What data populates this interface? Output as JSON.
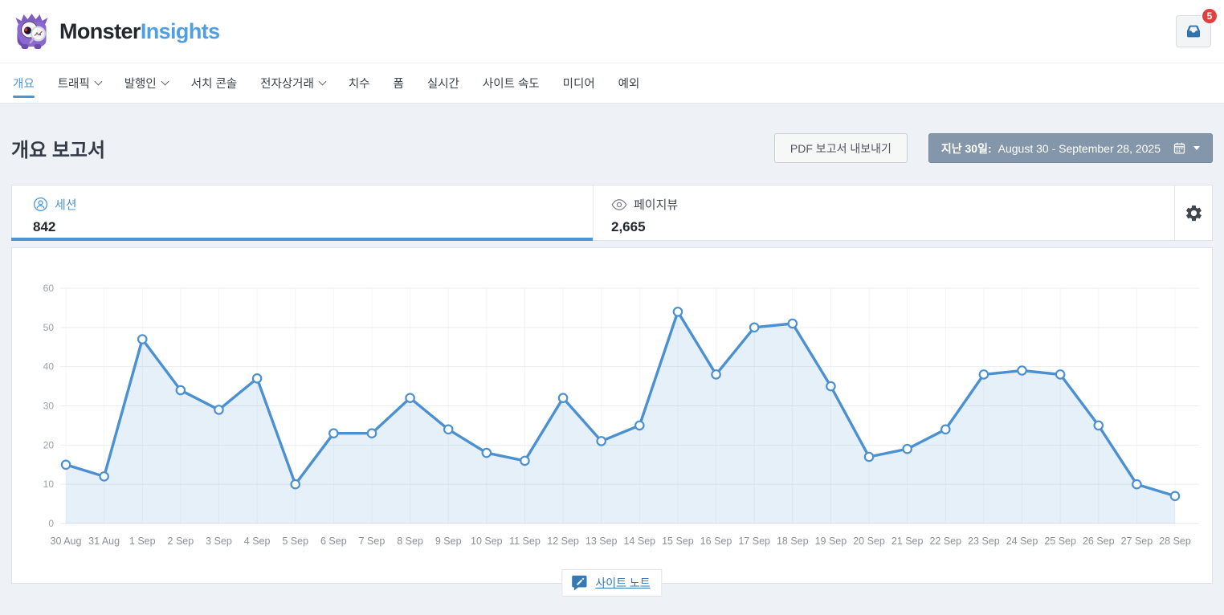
{
  "header": {
    "brand": {
      "part1": "Monster",
      "part2": "Insights"
    },
    "inbox_badge": "5"
  },
  "nav": {
    "items": [
      {
        "label": "개요",
        "slug": "overview",
        "dropdown": false,
        "active": true
      },
      {
        "label": "트래픽",
        "slug": "traffic",
        "dropdown": true,
        "active": false
      },
      {
        "label": "발행인",
        "slug": "publishers",
        "dropdown": true,
        "active": false
      },
      {
        "label": "서치 콘솔",
        "slug": "search-console",
        "dropdown": false,
        "active": false
      },
      {
        "label": "전자상거래",
        "slug": "ecommerce",
        "dropdown": true,
        "active": false
      },
      {
        "label": "치수",
        "slug": "dimensions",
        "dropdown": false,
        "active": false
      },
      {
        "label": "폼",
        "slug": "forms",
        "dropdown": false,
        "active": false
      },
      {
        "label": "실시간",
        "slug": "real-time",
        "dropdown": false,
        "active": false
      },
      {
        "label": "사이트 속도",
        "slug": "site-speed",
        "dropdown": false,
        "active": false
      },
      {
        "label": "미디어",
        "slug": "media",
        "dropdown": false,
        "active": false
      },
      {
        "label": "예외",
        "slug": "exceptions",
        "dropdown": false,
        "active": false
      }
    ]
  },
  "page": {
    "title": "개요 보고서",
    "pdf_export_label": "PDF 보고서 내보내기",
    "date_range": {
      "prefix": "지난 30일:",
      "range": "August 30 - September 28, 2025"
    }
  },
  "stats": {
    "sessions": {
      "label": "세션",
      "value": "842"
    },
    "pageviews": {
      "label": "페이지뷰",
      "value": "2,665"
    }
  },
  "chart_data": {
    "type": "line",
    "title": "",
    "xlabel": "",
    "ylabel": "",
    "categories": [
      "30 Aug",
      "31 Aug",
      "1 Sep",
      "2 Sep",
      "3 Sep",
      "4 Sep",
      "5 Sep",
      "6 Sep",
      "7 Sep",
      "8 Sep",
      "9 Sep",
      "10 Sep",
      "11 Sep",
      "12 Sep",
      "13 Sep",
      "14 Sep",
      "15 Sep",
      "16 Sep",
      "17 Sep",
      "18 Sep",
      "19 Sep",
      "20 Sep",
      "21 Sep",
      "22 Sep",
      "23 Sep",
      "24 Sep",
      "25 Sep",
      "26 Sep",
      "27 Sep",
      "28 Sep"
    ],
    "series": [
      {
        "name": "세션",
        "values": [
          15,
          12,
          47,
          34,
          29,
          37,
          10,
          23,
          23,
          32,
          24,
          18,
          16,
          32,
          21,
          25,
          54,
          38,
          50,
          51,
          35,
          17,
          19,
          24,
          38,
          39,
          38,
          25,
          10,
          7
        ]
      }
    ],
    "ylim": [
      0,
      60
    ],
    "ytick_step": 10,
    "grid": true,
    "legend_position": "none",
    "line_color": "#4a90d2",
    "area_color": "rgba(77,148,210,0.14)",
    "marker_fill": "#ffffff"
  },
  "footer": {
    "site_notes_label": "사이트 노트"
  },
  "colors": {
    "accent_blue": "#509fe2",
    "badge_red": "#e04040",
    "date_button_bg": "#8496a9",
    "page_bg": "#eef2f6",
    "brand_dark": "#23282d"
  }
}
